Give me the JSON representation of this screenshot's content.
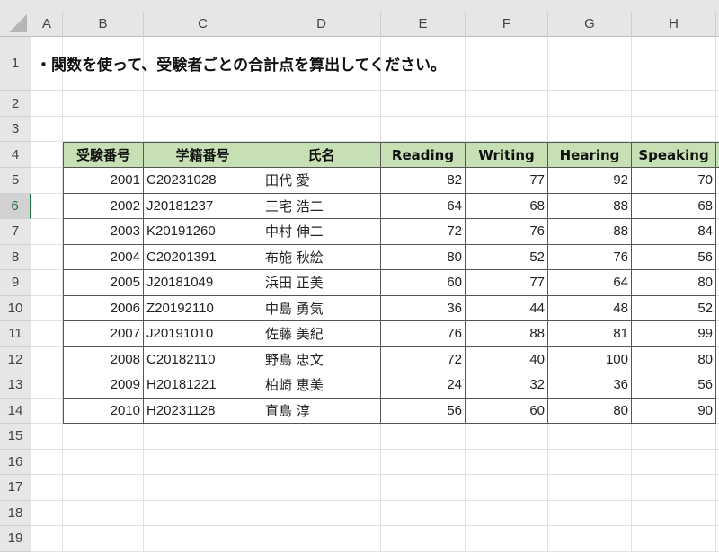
{
  "sheet": {
    "columns": [
      "A",
      "B",
      "C",
      "D",
      "E",
      "F",
      "G",
      "H"
    ],
    "rows": [
      "1",
      "2",
      "3",
      "4",
      "5",
      "6",
      "7",
      "8",
      "9",
      "10",
      "11",
      "12",
      "13",
      "14",
      "15",
      "16",
      "17",
      "18",
      "19"
    ],
    "selected_row": "6",
    "instruction": "・関数を使って、受験者ごとの合計点を算出してください。",
    "table": {
      "headers": [
        "受験番号",
        "学籍番号",
        "氏名",
        "Reading",
        "Writing",
        "Hearing",
        "Speaking"
      ],
      "rows": [
        [
          "2001",
          "C20231028",
          "田代 愛",
          "82",
          "77",
          "92",
          "70"
        ],
        [
          "2002",
          "J20181237",
          "三宅 浩二",
          "64",
          "68",
          "88",
          "68"
        ],
        [
          "2003",
          "K20191260",
          "中村 伸二",
          "72",
          "76",
          "88",
          "84"
        ],
        [
          "2004",
          "C20201391",
          "布施 秋絵",
          "80",
          "52",
          "76",
          "56"
        ],
        [
          "2005",
          "J20181049",
          "浜田 正美",
          "60",
          "77",
          "64",
          "80"
        ],
        [
          "2006",
          "Z20192110",
          "中島 勇気",
          "36",
          "44",
          "48",
          "52"
        ],
        [
          "2007",
          "J20191010",
          "佐藤 美紀",
          "76",
          "88",
          "81",
          "99"
        ],
        [
          "2008",
          "C20182110",
          "野島 忠文",
          "72",
          "40",
          "100",
          "80"
        ],
        [
          "2009",
          "H20181221",
          "柏崎 恵美",
          "24",
          "32",
          "36",
          "56"
        ],
        [
          "2010",
          "H20231128",
          "直島 淳",
          "56",
          "60",
          "80",
          "90"
        ]
      ]
    },
    "colors": {
      "header_fill": "#c6e0b4",
      "selection": "#217346"
    }
  }
}
